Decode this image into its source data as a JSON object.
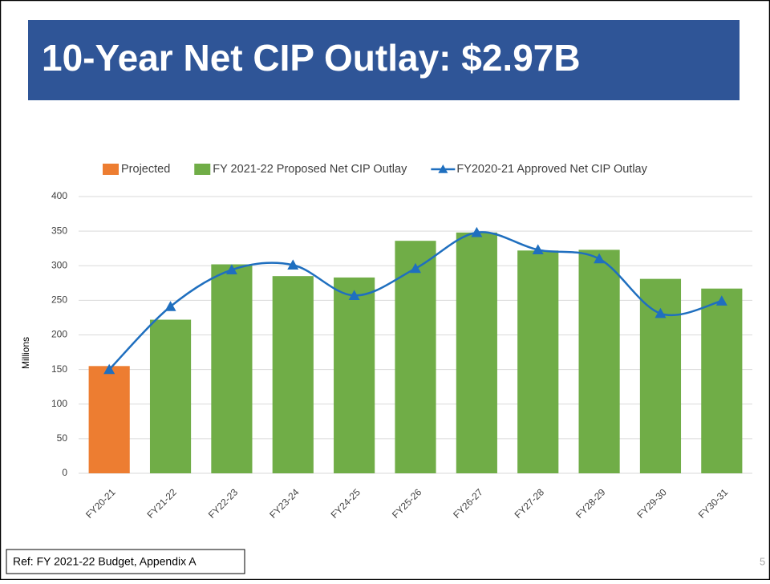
{
  "slide": {
    "title": "10-Year Net CIP Outlay: $2.97B",
    "ref": "Ref:  FY 2021-22 Budget, Appendix A",
    "page_number": "5"
  },
  "chart_data": {
    "type": "bar",
    "y_label": "Millions",
    "categories": [
      "FY20-21",
      "FY21-22",
      "FY22-23",
      "FY23-24",
      "FY24-25",
      "FY25-26",
      "FY26-27",
      "FY27-28",
      "FY28-29",
      "FY29-30",
      "FY30-31"
    ],
    "series": [
      {
        "name": "Projected",
        "type": "bar",
        "color": "#ed7d31",
        "values": [
          155,
          null,
          null,
          null,
          null,
          null,
          null,
          null,
          null,
          null,
          null
        ]
      },
      {
        "name": "FY 2021-22 Proposed Net CIP Outlay",
        "type": "bar",
        "color": "#70ad47",
        "values": [
          null,
          222,
          302,
          285,
          283,
          336,
          348,
          322,
          323,
          281,
          267
        ]
      },
      {
        "name": "FY2020-21 Approved Net CIP Outlay",
        "type": "line",
        "color": "#1f6fbf",
        "smooth": true,
        "values": [
          150,
          241,
          294,
          301,
          257,
          296,
          348,
          323,
          310,
          231,
          249
        ]
      }
    ],
    "ylim": [
      0,
      400
    ],
    "yticks": [
      0,
      50,
      100,
      150,
      200,
      250,
      300,
      350,
      400
    ],
    "grid": true,
    "legend": "top"
  }
}
